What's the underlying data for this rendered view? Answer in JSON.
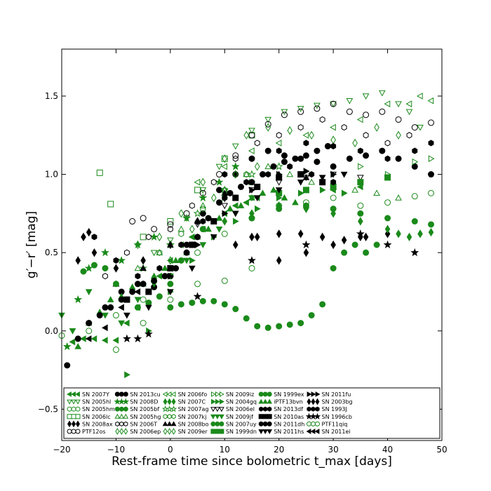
{
  "chart_data": {
    "type": "scatter",
    "xlabel": "Rest-frame time since bolometric t_max [days]",
    "ylabel": "g′−r′ [mag]",
    "xlim": [
      -20,
      50
    ],
    "ylim": [
      -0.7,
      1.8
    ],
    "xticks": [
      "−20",
      "−10",
      "0",
      "10",
      "20",
      "30",
      "40",
      "50"
    ],
    "yticks": [
      "−0.5",
      "0.0",
      "0.5",
      "1.0",
      "1.5"
    ],
    "xtick_values": [
      -20,
      -10,
      0,
      10,
      20,
      30,
      40,
      50
    ],
    "ytick_values": [
      -0.5,
      0.0,
      0.5,
      1.0,
      1.5
    ],
    "grid": false,
    "legend_placement": "bottom",
    "colors": {
      "black": "#000000",
      "green": "#1a8a1a"
    },
    "series": [
      {
        "name": "SN 2007Y",
        "color": "#1a8a1a",
        "marker": "tri-left",
        "filled": true,
        "x": [
          -18,
          -16,
          -14,
          -12,
          -10,
          -8,
          -6,
          -4,
          -2,
          0,
          2,
          4,
          6,
          8,
          10,
          12,
          14,
          16,
          20,
          25,
          30,
          35
        ],
        "y": [
          -0.07,
          -0.05,
          -0.05,
          -0.06,
          -0.06,
          0.05,
          0.15,
          0.25,
          0.35,
          0.45,
          0.55,
          0.6,
          0.65,
          0.7,
          0.75,
          0.8,
          0.82,
          0.85,
          0.88,
          0.9,
          0.9,
          0.92
        ]
      },
      {
        "name": "SN 2005hl",
        "color": "#1a8a1a",
        "marker": "tri-down",
        "filled": false,
        "x": [
          -3,
          0,
          3,
          6,
          9,
          12,
          15,
          18,
          21,
          24,
          27,
          30,
          33,
          36,
          39,
          42,
          44,
          46
        ],
        "y": [
          0.5,
          0.58,
          0.72,
          0.9,
          1.05,
          1.18,
          1.28,
          1.35,
          1.4,
          1.42,
          1.44,
          1.45,
          1.47,
          1.5,
          1.52,
          1.45,
          1.4,
          1.3
        ]
      },
      {
        "name": "SN 2005hm",
        "color": "#1a8a1a",
        "marker": "circle",
        "filled": false,
        "x": [
          -20,
          -15,
          -10,
          -5,
          0,
          5,
          10,
          15,
          20,
          25,
          30,
          35,
          40,
          45,
          48
        ],
        "y": [
          -0.03,
          0.0,
          0.1,
          0.2,
          0.35,
          0.5,
          0.62,
          0.72,
          0.8,
          0.82,
          0.85,
          0.8,
          0.82,
          0.86,
          0.88
        ]
      },
      {
        "name": "SN 2006lc",
        "color": "#1a8a1a",
        "marker": "square",
        "filled": false,
        "x": [
          -13,
          -11,
          -5,
          0,
          5,
          10,
          15
        ],
        "y": [
          1.01,
          0.81,
          0.6,
          0.7,
          0.9,
          1.1,
          1.25
        ]
      },
      {
        "name": "SN 2008ax",
        "color": "#000000",
        "marker": "diamond",
        "filled": true,
        "x": [
          -17,
          -16,
          -15,
          -14,
          -10,
          -5,
          0,
          5,
          10,
          15,
          20,
          25,
          30,
          35,
          40
        ],
        "y": [
          0.45,
          0.6,
          0.63,
          0.5,
          0.4,
          0.45,
          0.55,
          0.7,
          0.85,
          0.6,
          0.45,
          0.5,
          0.55,
          0.6,
          0.62
        ]
      },
      {
        "name": "PTF12os",
        "color": "#000000",
        "marker": "circle",
        "filled": false,
        "x": [
          -7,
          -5,
          -3,
          0,
          3,
          6,
          9,
          12,
          15,
          18,
          21,
          24,
          27,
          30,
          33,
          36,
          39,
          42,
          45,
          48
        ],
        "y": [
          0.7,
          0.72,
          0.65,
          0.68,
          0.75,
          0.88,
          1.0,
          1.12,
          1.25,
          1.32,
          1.38,
          1.4,
          1.42,
          1.45,
          1.4,
          1.38,
          1.4,
          1.35,
          1.3,
          1.33
        ]
      },
      {
        "name": "SN 2013cu",
        "color": "#000000",
        "marker": "circle",
        "filled": true,
        "x": [
          -15,
          -12,
          -9,
          -6,
          -3,
          0,
          3,
          6,
          9,
          12,
          15,
          18,
          21,
          24,
          27,
          30,
          33,
          36,
          39,
          42,
          45,
          48
        ],
        "y": [
          0.05,
          0.15,
          0.25,
          0.3,
          0.28,
          0.35,
          0.55,
          0.75,
          0.9,
          1.0,
          1.1,
          1.15,
          1.12,
          1.1,
          1.08,
          1.05,
          1.1,
          1.12,
          1.15,
          1.1,
          1.05,
          1.0
        ]
      },
      {
        "name": "SN 2008D",
        "color": "#1a8a1a",
        "marker": "star",
        "filled": true,
        "x": [
          -19,
          -17,
          -15,
          -12,
          -9,
          -6,
          -3,
          0,
          3,
          6,
          9,
          12
        ],
        "y": [
          -0.1,
          0.2,
          0.4,
          0.5,
          0.45,
          0.55,
          0.6,
          0.55,
          0.72,
          0.85,
          0.95,
          1.05
        ]
      },
      {
        "name": "SN 2005bf",
        "color": "#1a8a1a",
        "marker": "circle",
        "filled": true,
        "x": [
          0,
          2,
          4,
          6,
          8,
          10,
          12,
          14,
          16,
          18,
          20,
          22,
          24,
          26,
          28,
          30,
          32,
          34,
          36,
          38
        ],
        "y": [
          0.15,
          0.17,
          0.18,
          0.19,
          0.19,
          0.17,
          0.14,
          0.08,
          0.03,
          0.02,
          0.03,
          0.04,
          0.05,
          0.1,
          0.17,
          0.4,
          0.5,
          0.55,
          0.5,
          0.55
        ]
      },
      {
        "name": "SN 2005hg",
        "color": "#1a8a1a",
        "marker": "tri-up",
        "filled": false,
        "x": [
          -10,
          -6,
          -2,
          2,
          6,
          10,
          14,
          18,
          22,
          26,
          30,
          34,
          38,
          42
        ],
        "y": [
          0.3,
          0.4,
          0.5,
          0.65,
          0.8,
          0.9,
          1.0,
          1.05,
          1.0,
          0.95,
          0.92,
          0.9,
          0.88,
          0.85
        ]
      },
      {
        "name": "SN 2006T",
        "color": "#000000",
        "marker": "hexagon",
        "filled": false,
        "x": [
          -12,
          -8,
          -4,
          0,
          4,
          8,
          12,
          16,
          20,
          24,
          28,
          32,
          36,
          40,
          44
        ],
        "y": [
          0.35,
          0.5,
          0.6,
          0.65,
          0.8,
          0.95,
          1.1,
          1.2,
          1.25,
          1.3,
          1.35,
          1.3,
          1.25,
          1.2,
          1.25
        ]
      },
      {
        "name": "SN 2006ep",
        "color": "#1a8a1a",
        "marker": "diamond",
        "filled": false,
        "x": [
          -6,
          -2,
          2,
          6,
          10,
          14,
          18,
          22,
          26,
          30,
          34,
          38,
          42
        ],
        "y": [
          0.55,
          0.6,
          0.75,
          0.95,
          1.1,
          1.25,
          1.3,
          1.28,
          1.25,
          1.22,
          1.2,
          1.3,
          1.25
        ]
      },
      {
        "name": "SN 2006fo",
        "color": "#1a8a1a",
        "marker": "tri-left",
        "filled": false,
        "x": [
          5,
          10,
          15,
          20,
          25,
          30,
          35,
          40,
          44,
          46,
          48
        ],
        "y": [
          0.95,
          1.05,
          1.15,
          1.2,
          1.25,
          1.3,
          1.35,
          1.45,
          1.45,
          1.5,
          1.47
        ]
      },
      {
        "name": "SN 2007C",
        "color": "#1a8a1a",
        "marker": "diamond",
        "filled": true,
        "x": [
          10,
          15,
          20,
          25,
          30,
          35,
          40,
          42,
          44,
          46,
          48
        ],
        "y": [
          0.7,
          0.75,
          0.8,
          0.78,
          0.75,
          0.7,
          0.65,
          0.62,
          0.6,
          0.62,
          0.63
        ]
      },
      {
        "name": "SN 2007ag",
        "color": "#1a8a1a",
        "marker": "star",
        "filled": false,
        "x": [
          -5,
          0,
          5,
          10,
          15,
          20
        ],
        "y": [
          0.4,
          0.55,
          0.75,
          0.9,
          1.0,
          1.05
        ]
      },
      {
        "name": "SN 2007kj",
        "color": "#1a8a1a",
        "marker": "hexagon",
        "filled": false,
        "x": [
          -2,
          2,
          6,
          10,
          14
        ],
        "y": [
          0.5,
          0.62,
          0.78,
          0.9,
          1.0
        ]
      },
      {
        "name": "SN 2008bo",
        "color": "#000000",
        "marker": "tri-up",
        "filled": true,
        "x": [
          -10,
          -5,
          0,
          5,
          10,
          15,
          20,
          25
        ],
        "y": [
          0.3,
          0.4,
          0.55,
          0.7,
          0.88,
          0.95,
          1.0,
          0.98
        ]
      },
      {
        "name": "SN 2009er",
        "color": "#1a8a1a",
        "marker": "diamond",
        "filled": false,
        "x": [
          0,
          4,
          8,
          12,
          16
        ],
        "y": [
          0.45,
          0.65,
          0.85,
          1.0,
          1.05
        ]
      },
      {
        "name": "SN 2009iz",
        "color": "#1a8a1a",
        "marker": "tri-right",
        "filled": false,
        "x": [
          10,
          15,
          20,
          25,
          30,
          35,
          40,
          45,
          48
        ],
        "y": [
          0.85,
          0.95,
          1.0,
          1.02,
          1.0,
          1.05,
          1.0,
          1.08,
          1.1
        ]
      },
      {
        "name": "SN 2004gq",
        "color": "#1a8a1a",
        "marker": "tri-right",
        "filled": true,
        "x": [
          -8,
          -4,
          0,
          4,
          8,
          12,
          16,
          20,
          24,
          28,
          32
        ],
        "y": [
          -0.28,
          0.0,
          0.25,
          0.45,
          0.6,
          0.7,
          0.78,
          0.85,
          0.88,
          0.9,
          0.88
        ]
      },
      {
        "name": "SN 2006el",
        "color": "#000000",
        "marker": "tri-down",
        "filled": false,
        "x": [
          5,
          10,
          15,
          20,
          25,
          30,
          35
        ],
        "y": [
          0.68,
          0.8,
          0.9,
          0.95,
          0.98,
          1.0,
          0.98
        ]
      },
      {
        "name": "SN 2009jf",
        "color": "#1a8a1a",
        "marker": "tri-down",
        "filled": true,
        "x": [
          -20,
          -18,
          -15,
          -12,
          -9,
          -6,
          -3,
          0,
          3,
          6,
          9,
          12,
          15
        ],
        "y": [
          0.1,
          0.0,
          0.25,
          0.1,
          0.05,
          0.2,
          0.3,
          0.35,
          0.45,
          0.55,
          0.65,
          0.75,
          0.85
        ]
      },
      {
        "name": "SN 2007uy",
        "color": "#1a8a1a",
        "marker": "circle",
        "filled": true,
        "x": [
          15,
          20,
          25,
          30,
          35,
          40,
          45,
          48
        ],
        "y": [
          0.72,
          0.78,
          0.8,
          0.78,
          0.75,
          0.72,
          0.7,
          0.68
        ]
      },
      {
        "name": "SN 1999dn",
        "color": "#1a8a1a",
        "marker": "square",
        "filled": true,
        "x": [
          20,
          25,
          30,
          35,
          40
        ],
        "y": [
          0.88,
          0.9,
          0.92,
          0.95,
          0.98
        ]
      },
      {
        "name": "SN 1999ex",
        "color": "#1a8a1a",
        "marker": "circle",
        "filled": true,
        "x": [
          -16,
          -14,
          -12,
          -10,
          -8,
          -6,
          -4,
          -2,
          0,
          2,
          4,
          6,
          8
        ],
        "y": [
          0.38,
          0.42,
          0.4,
          0.3,
          0.2,
          0.15,
          0.18,
          0.22,
          0.3,
          0.45,
          0.55,
          0.65,
          0.7
        ]
      },
      {
        "name": "iPTF13bvn",
        "color": "#1a8a1a",
        "marker": "tri-up",
        "filled": true,
        "x": [
          -17,
          -15,
          -13,
          -11,
          -9,
          -7,
          -5,
          -3,
          -1,
          1,
          3,
          5,
          7,
          9,
          11,
          13,
          15,
          17,
          19,
          21,
          23,
          25
        ],
        "y": [
          -0.1,
          0.05,
          0.12,
          0.2,
          0.22,
          0.28,
          0.3,
          0.35,
          0.4,
          0.45,
          0.5,
          0.6,
          0.65,
          0.72,
          0.78,
          0.8,
          0.85,
          0.88,
          0.9,
          0.85,
          0.82,
          0.8
        ]
      },
      {
        "name": "SN 2013df",
        "color": "#000000",
        "marker": "hexagon",
        "filled": true,
        "x": [
          -14,
          -10,
          -6,
          -2,
          2,
          6,
          10,
          14,
          18,
          22,
          26,
          30
        ],
        "y": [
          0.6,
          0.45,
          0.35,
          0.4,
          0.55,
          0.7,
          0.85,
          0.95,
          1.0,
          1.05,
          1.0,
          0.95
        ]
      },
      {
        "name": "SN 2010as",
        "color": "#000000",
        "marker": "square",
        "filled": true,
        "x": [
          -8,
          -4,
          0,
          4,
          8,
          12,
          16,
          20,
          24,
          28
        ],
        "y": [
          0.2,
          0.25,
          0.4,
          0.55,
          0.7,
          0.85,
          0.92,
          0.98,
          1.0,
          0.95
        ]
      },
      {
        "name": "SN 2011dh",
        "color": "#000000",
        "marker": "circle",
        "filled": true,
        "x": [
          -19,
          -17,
          -15,
          -13,
          -11,
          -9,
          -7,
          -5,
          -3,
          -1,
          1,
          3,
          5,
          7,
          9,
          11,
          13,
          15,
          17,
          19,
          21,
          23,
          25,
          27,
          29
        ],
        "y": [
          -0.22,
          -0.05,
          0.05,
          0.1,
          0.15,
          0.2,
          0.25,
          0.3,
          0.32,
          0.35,
          0.4,
          0.5,
          0.6,
          0.72,
          0.82,
          0.88,
          0.92,
          0.95,
          1.0,
          1.05,
          1.08,
          1.1,
          1.12,
          1.15,
          1.18
        ]
      },
      {
        "name": "SN 2011hs",
        "color": "#000000",
        "marker": "tri-down",
        "filled": true,
        "x": [
          -8,
          -4,
          0,
          4,
          8,
          12,
          16,
          20,
          24,
          28,
          32
        ],
        "y": [
          0.1,
          0.15,
          0.25,
          0.4,
          0.6,
          0.75,
          0.85,
          0.9,
          0.95,
          0.98,
          1.0
        ]
      },
      {
        "name": "SN 2011fu",
        "color": "#000000",
        "marker": "tri-right",
        "filled": true,
        "x": [
          0,
          5,
          10,
          15,
          20,
          25,
          30
        ],
        "y": [
          0.35,
          0.55,
          0.75,
          0.9,
          1.0,
          1.02,
          1.0
        ]
      },
      {
        "name": "SN 2003bg",
        "color": "#000000",
        "marker": "diamond",
        "filled": true,
        "x": [
          12,
          16,
          20,
          24,
          28,
          32,
          36
        ],
        "y": [
          0.55,
          0.6,
          0.62,
          0.62,
          0.6,
          0.58,
          0.6
        ]
      },
      {
        "name": "SN 1993J",
        "color": "#000000",
        "marker": "hexagon",
        "filled": true,
        "x": [
          10,
          15,
          20,
          25,
          30,
          35,
          40,
          45,
          48
        ],
        "y": [
          1.0,
          1.1,
          1.15,
          1.2,
          1.18,
          1.15,
          1.1,
          1.15,
          1.2
        ]
      },
      {
        "name": "SN 1996cb",
        "color": "#000000",
        "marker": "star",
        "filled": true,
        "x": [
          -8,
          -6,
          -4,
          5,
          15,
          25,
          35,
          40,
          45
        ],
        "y": [
          -0.05,
          -0.05,
          -0.02,
          0.22,
          0.45,
          0.55,
          0.62,
          0.55,
          0.5
        ]
      },
      {
        "name": "PTF11qiq",
        "color": "#1a8a1a",
        "marker": "circle",
        "filled": false,
        "x": [
          -10,
          -5,
          0,
          5,
          10,
          15
        ],
        "y": [
          -0.12,
          0.05,
          0.2,
          0.3,
          0.32,
          0.4
        ]
      },
      {
        "name": "SN 2011ei",
        "color": "#000000",
        "marker": "tri-left",
        "filled": true,
        "x": [
          -15,
          -12,
          -9,
          -6
        ],
        "y": [
          -0.05,
          0.02,
          0.15,
          0.25
        ]
      }
    ]
  }
}
